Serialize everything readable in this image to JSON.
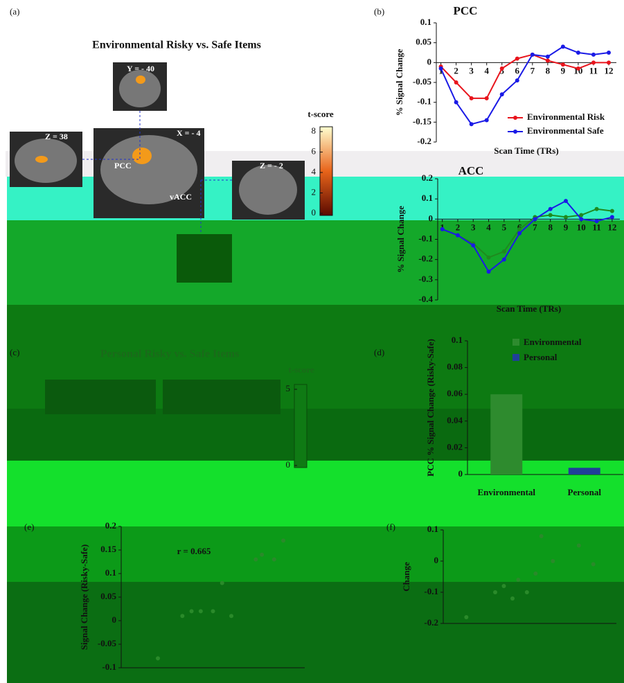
{
  "panels": {
    "a": {
      "label": "(a)",
      "title": "Environmental Risky vs. Safe Items",
      "slices": [
        "Y = - 40",
        "Z = 38",
        "X = - 4",
        "Z = - 2"
      ],
      "regions": [
        "PCC",
        "vACC"
      ],
      "colorbar_title": "t-score",
      "colorbar_ticks": [
        0,
        2,
        4,
        6,
        8
      ]
    },
    "b": {
      "label": "(b)"
    },
    "c": {
      "label": "(c)",
      "title": "Personal Risky vs. Safe Items",
      "colorbar_title": "t-score",
      "colorbar_ticks": [
        0,
        5
      ]
    },
    "d": {
      "label": "(d)"
    },
    "e": {
      "label": "(e)"
    },
    "f": {
      "label": "(f)"
    }
  },
  "chart_data": [
    {
      "type": "line",
      "title": "PCC",
      "x_label": "Scan Time (TRs)",
      "y_label": "% Signal Change",
      "x": [
        1,
        2,
        3,
        4,
        5,
        6,
        7,
        8,
        9,
        10,
        11,
        12
      ],
      "xlim": [
        0.7,
        12.5
      ],
      "xticks": [
        1,
        2,
        3,
        4,
        5,
        6,
        7,
        8,
        9,
        10,
        11,
        12
      ],
      "ylim": [
        -0.2,
        0.1
      ],
      "yticks": [
        -0.2,
        -0.15,
        -0.1,
        -0.05,
        0,
        0.05,
        0.1
      ],
      "series": [
        {
          "name": "Environmental Risk",
          "color": "#e8141c",
          "values": [
            -0.01,
            -0.05,
            -0.09,
            -0.09,
            -0.015,
            0.01,
            0.02,
            0.005,
            -0.005,
            -0.015,
            0,
            0
          ]
        },
        {
          "name": "Environmental Safe",
          "color": "#1a1ae6",
          "values": [
            -0.015,
            -0.1,
            -0.155,
            -0.145,
            -0.08,
            -0.045,
            0.02,
            0.015,
            0.04,
            0.025,
            0.02,
            0.025
          ]
        }
      ]
    },
    {
      "type": "line",
      "title": "ACC",
      "x_label": "Scan Time (TRs)",
      "y_label": "% Signal Change",
      "x": [
        1,
        2,
        3,
        4,
        5,
        6,
        7,
        8,
        9,
        10,
        11,
        12
      ],
      "xlim": [
        0.7,
        12.5
      ],
      "xticks": [
        1,
        2,
        3,
        4,
        5,
        6,
        7,
        8,
        9,
        10,
        11,
        12
      ],
      "ylim": [
        -0.4,
        0.2
      ],
      "yticks": [
        -0.4,
        -0.3,
        -0.2,
        -0.1,
        0,
        0.1,
        0.2
      ],
      "series": [
        {
          "color": "#1f8a1f",
          "values": [
            -0.05,
            -0.08,
            -0.12,
            -0.19,
            -0.16,
            -0.05,
            0.01,
            0.02,
            0.01,
            0.02,
            0.05,
            0.04
          ]
        },
        {
          "color": "#1a1ae6",
          "values": [
            -0.05,
            -0.08,
            -0.13,
            -0.26,
            -0.2,
            -0.07,
            0,
            0.05,
            0.09,
            0,
            -0.01,
            0.01
          ]
        }
      ]
    },
    {
      "type": "bar",
      "y_label": "PCC % Signal Change (Risky-Safe)",
      "categories": [
        "Environmental",
        "Personal"
      ],
      "values": [
        0.06,
        0.005
      ],
      "colors": [
        "#2e8b2e",
        "#1f3f99"
      ],
      "ylim": [
        0,
        0.1
      ],
      "yticks": [
        0,
        0.02,
        0.04,
        0.06,
        0.08,
        0.1
      ]
    },
    {
      "type": "scatter",
      "y_label": "Signal Change (Risky-Safe)",
      "annotation": "r = 0.665",
      "color": "#2a8a2a",
      "x": [
        1.2,
        2.0,
        2.3,
        2.6,
        3.0,
        3.3,
        3.6,
        4.4,
        4.6,
        5.0,
        5.3
      ],
      "values": [
        -0.08,
        0.01,
        0.02,
        0.02,
        0.02,
        0.08,
        0.01,
        0.13,
        0.14,
        0.13,
        0.17
      ],
      "xlim": [
        0,
        6
      ],
      "ylim": [
        -0.1,
        0.2
      ],
      "yticks": [
        -0.1,
        -0.05,
        0,
        0.05,
        0.1,
        0.15,
        0.2
      ]
    },
    {
      "type": "scatter",
      "y_label": "Change",
      "color": "#2a8a2a",
      "x": [
        0.8,
        1.8,
        2.1,
        2.4,
        2.6,
        2.9,
        3.2,
        3.4,
        3.8,
        4.7,
        5.2
      ],
      "values": [
        -0.18,
        -0.1,
        -0.08,
        -0.12,
        -0.06,
        -0.1,
        -0.04,
        0.08,
        0,
        0.05,
        -0.01
      ],
      "xlim": [
        0,
        6
      ],
      "ylim": [
        -0.2,
        0.1
      ],
      "yticks": [
        -0.2,
        -0.1,
        0,
        0.1
      ]
    }
  ]
}
